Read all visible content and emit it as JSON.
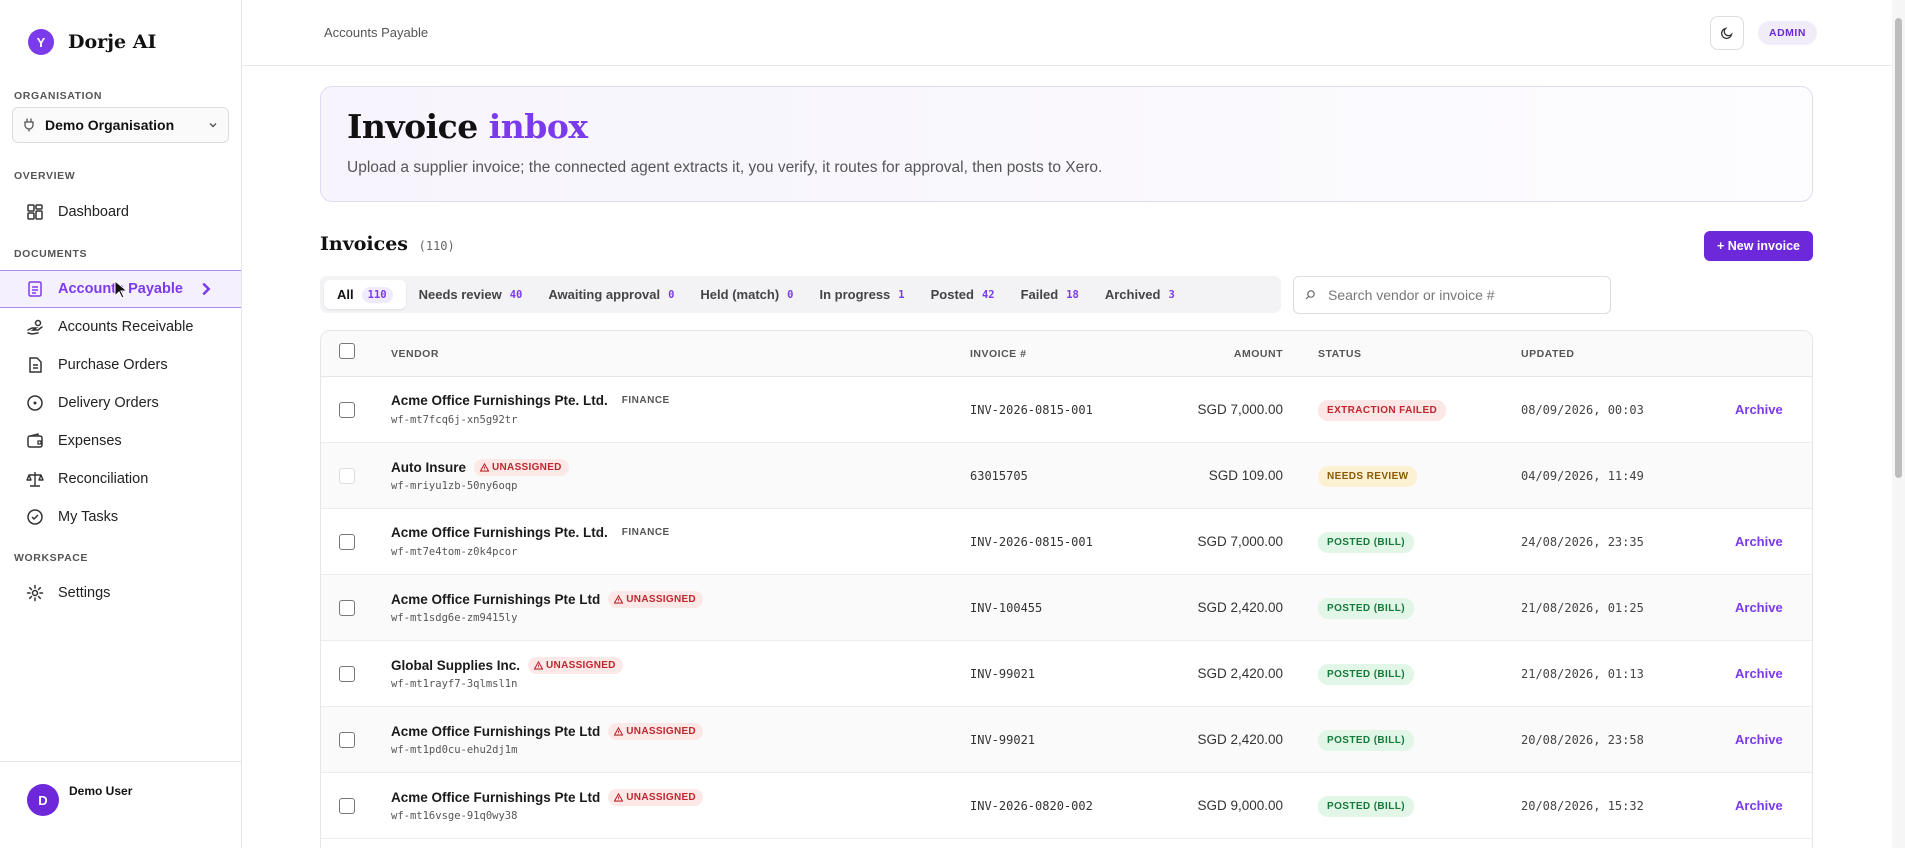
{
  "app": {
    "name": "Dorje AI",
    "logo_glyph": "Y"
  },
  "sidebar": {
    "org_label": "ORGANISATION",
    "org_value": "Demo Organisation",
    "sections": {
      "overview": "OVERVIEW",
      "documents": "DOCUMENTS",
      "workspace": "WORKSPACE"
    },
    "items": {
      "dashboard": "Dashboard",
      "accounts_payable": "Accounts Payable",
      "accounts_receivable": "Accounts Receivable",
      "purchase_orders": "Purchase Orders",
      "delivery_orders": "Delivery Orders",
      "expenses": "Expenses",
      "reconciliation": "Reconciliation",
      "my_tasks": "My Tasks",
      "settings": "Settings"
    },
    "user": {
      "initial": "D",
      "name": "Demo User"
    }
  },
  "header": {
    "breadcrumb": "Accounts Payable",
    "role_badge": "ADMIN"
  },
  "hero": {
    "title_main": "Invoice",
    "title_accent": "inbox",
    "subtitle": "Upload a supplier invoice; the connected agent extracts it, you verify, it routes for approval, then posts to Xero."
  },
  "invoices": {
    "title": "Invoices",
    "count": "(110)",
    "new_button": "+ New invoice",
    "search_placeholder": "Search vendor or invoice #",
    "tabs": [
      {
        "label": "All",
        "count": "110"
      },
      {
        "label": "Needs review",
        "count": "40"
      },
      {
        "label": "Awaiting approval",
        "count": "0"
      },
      {
        "label": "Held (match)",
        "count": "0"
      },
      {
        "label": "In progress",
        "count": "1"
      },
      {
        "label": "Posted",
        "count": "42"
      },
      {
        "label": "Failed",
        "count": "18"
      },
      {
        "label": "Archived",
        "count": "3"
      }
    ],
    "columns": {
      "vendor": "VENDOR",
      "invoice": "INVOICE #",
      "amount": "AMOUNT",
      "status": "STATUS",
      "updated": "UPDATED"
    },
    "unassigned_label": "UNASSIGNED",
    "archive_label": "Archive",
    "rows": [
      {
        "vendor": "Acme Office Furnishings Pte. Ltd.",
        "tag": "FINANCE",
        "id": "wf-mt7fcq6j-xn5g92tr",
        "invoice": "INV-2026-0815-001",
        "amount": "SGD 7,000.00",
        "status": "EXTRACTION FAILED",
        "updated": "08/09/2026, 00:03"
      },
      {
        "vendor": "Auto Insure",
        "tag": "UNASSIGNED",
        "id": "wf-mriyu1zb-50ny6oqp",
        "invoice": "63015705",
        "amount": "SGD 109.00",
        "status": "NEEDS REVIEW",
        "updated": "04/09/2026, 11:49"
      },
      {
        "vendor": "Acme Office Furnishings Pte. Ltd.",
        "tag": "FINANCE",
        "id": "wf-mt7e4tom-z0k4pcor",
        "invoice": "INV-2026-0815-001",
        "amount": "SGD 7,000.00",
        "status": "POSTED (BILL)",
        "updated": "24/08/2026, 23:35"
      },
      {
        "vendor": "Acme Office Furnishings Pte Ltd",
        "tag": "UNASSIGNED",
        "id": "wf-mt1sdg6e-zm9415ly",
        "invoice": "INV-100455",
        "amount": "SGD 2,420.00",
        "status": "POSTED (BILL)",
        "updated": "21/08/2026, 01:25"
      },
      {
        "vendor": "Global Supplies Inc.",
        "tag": "UNASSIGNED",
        "id": "wf-mt1rayf7-3qlmsl1n",
        "invoice": "INV-99021",
        "amount": "SGD 2,420.00",
        "status": "POSTED (BILL)",
        "updated": "21/08/2026, 01:13"
      },
      {
        "vendor": "Acme Office Furnishings Pte Ltd",
        "tag": "UNASSIGNED",
        "id": "wf-mt1pd0cu-ehu2dj1m",
        "invoice": "INV-99021",
        "amount": "SGD 2,420.00",
        "status": "POSTED (BILL)",
        "updated": "20/08/2026, 23:58"
      },
      {
        "vendor": "Acme Office Furnishings Pte Ltd",
        "tag": "UNASSIGNED",
        "id": "wf-mt16vsge-91q0wy38",
        "invoice": "INV-2026-0820-002",
        "amount": "SGD 9,000.00",
        "status": "POSTED (BILL)",
        "updated": "20/08/2026, 15:32"
      }
    ]
  },
  "colors": {
    "accent": "#7c3aed",
    "failed": "#c0262d",
    "review": "#8a5a00",
    "posted": "#167a3b"
  }
}
